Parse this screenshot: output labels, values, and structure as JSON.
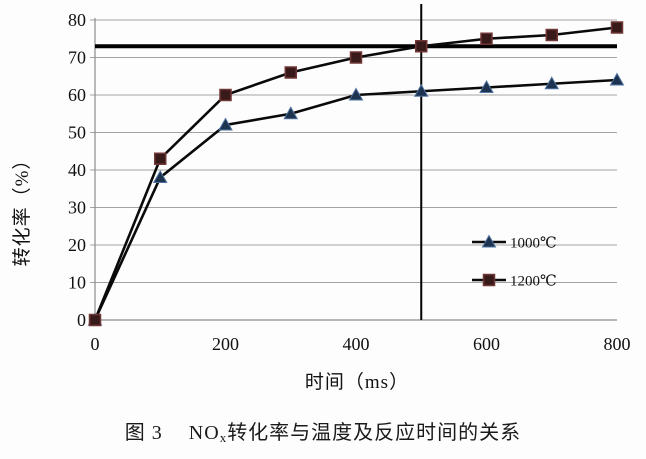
{
  "page": {
    "background": "#fdfdfd"
  },
  "chart_data": {
    "type": "line",
    "title": "",
    "xlabel": "时间（ms）",
    "ylabel": "转化率（%）",
    "x": [
      0,
      100,
      200,
      300,
      400,
      500,
      600,
      700,
      800
    ],
    "x_ticks": [
      0,
      200,
      400,
      600,
      800
    ],
    "y_ticks": [
      0,
      10,
      20,
      30,
      40,
      50,
      60,
      70,
      80
    ],
    "xlim": [
      0,
      800
    ],
    "ylim": [
      0,
      80
    ],
    "grid": "horizontal",
    "legend_position": "inside-right",
    "series": [
      {
        "name": "1000℃",
        "marker": "triangle",
        "marker_fill": "#1d3350",
        "marker_edge": "#50749f",
        "line_color": "#0a0a0a",
        "values": [
          0,
          38,
          52,
          55,
          60,
          61,
          62,
          63,
          64
        ]
      },
      {
        "name": "1200℃",
        "marker": "square",
        "marker_fill": "#381a1a",
        "marker_edge": "#713636",
        "line_color": "#0a0a0a",
        "values": [
          0,
          43,
          60,
          66,
          70,
          73,
          75,
          76,
          78
        ]
      }
    ],
    "annotations": [
      {
        "type": "hline",
        "y": 73,
        "color": "#000000"
      },
      {
        "type": "vline",
        "x": 500,
        "color": "#000000"
      }
    ],
    "colors": {
      "gridline": "#a3a3a3",
      "axis": "#8c8c8c",
      "text": "#111111"
    }
  },
  "caption": {
    "figure_label": "图 3",
    "pre_sub": "NO",
    "sub": "x",
    "post_sub": "转化率与温度及反应时间的关系"
  }
}
